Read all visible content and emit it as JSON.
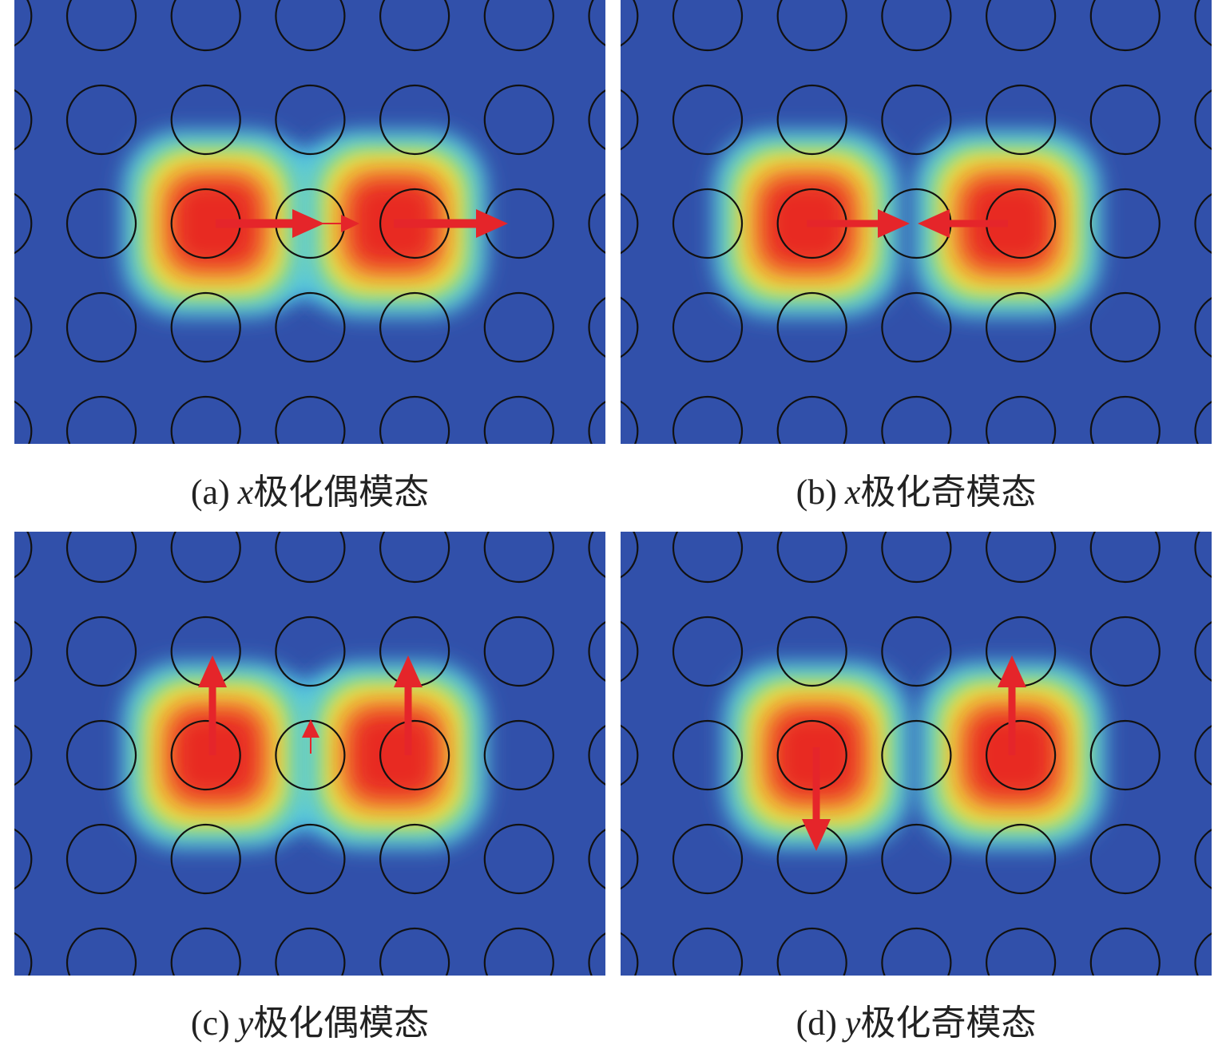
{
  "panels": [
    {
      "label": "(a)",
      "variable": "x",
      "text": "极化偶模态"
    },
    {
      "label": "(b)",
      "variable": "x",
      "text": "极化奇模态"
    },
    {
      "label": "(c)",
      "variable": "y",
      "text": "极化偶模态"
    },
    {
      "label": "(d)",
      "variable": "y",
      "text": "极化奇模态"
    }
  ]
}
